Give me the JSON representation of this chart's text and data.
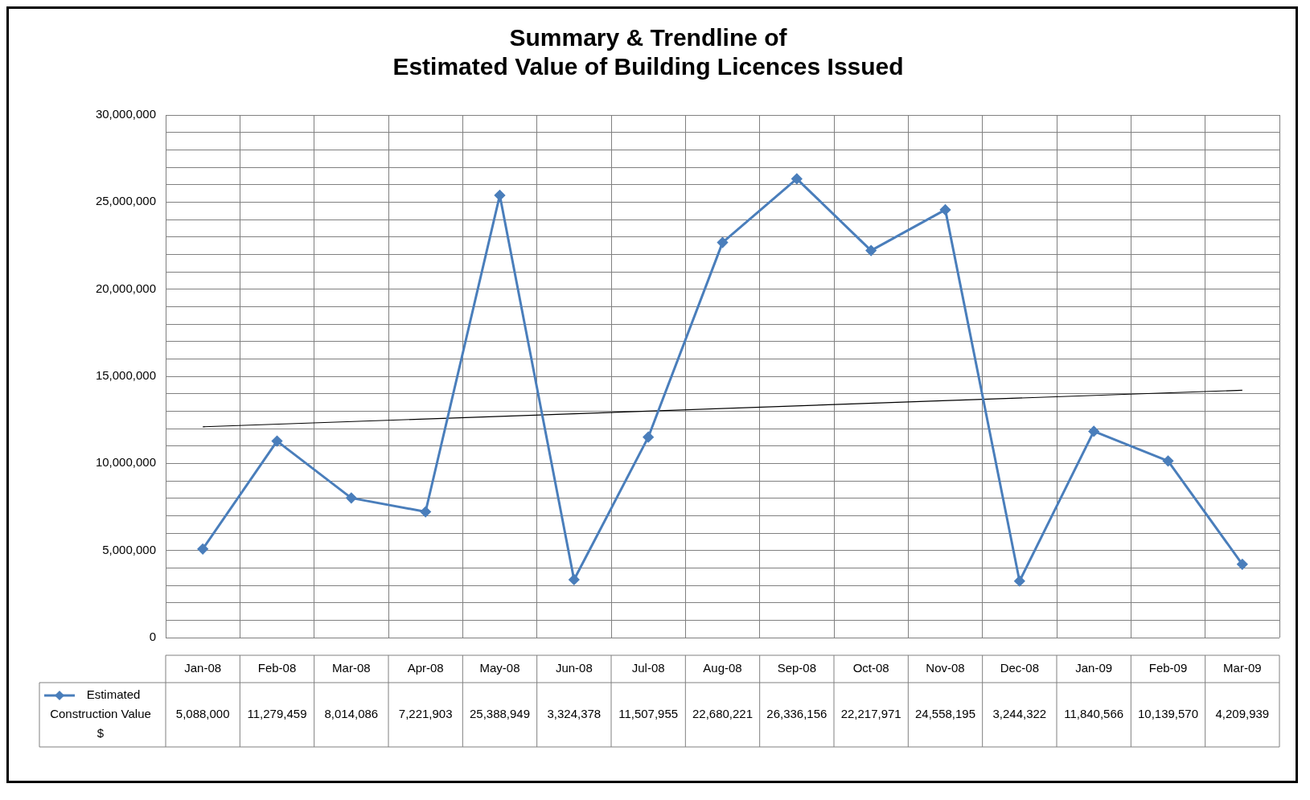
{
  "chart_data": {
    "type": "line",
    "title": "Summary & Trendline of\nEstimated Value of Building Licences Issued",
    "categories": [
      "Jan-08",
      "Feb-08",
      "Mar-08",
      "Apr-08",
      "May-08",
      "Jun-08",
      "Jul-08",
      "Aug-08",
      "Sep-08",
      "Oct-08",
      "Nov-08",
      "Dec-08",
      "Jan-09",
      "Feb-09",
      "Mar-09"
    ],
    "series": [
      {
        "name": "Estimated Construction Value $",
        "color": "#4a7ebb",
        "values": [
          5088000,
          11279459,
          8014086,
          7221903,
          25388949,
          3324378,
          11507955,
          22680221,
          26336156,
          22217971,
          24558195,
          3244322,
          11840566,
          10139570,
          4209939
        ],
        "value_labels": [
          "5,088,000",
          "11,279,459",
          "8,014,086",
          "7,221,903",
          "25,388,949",
          "3,324,378",
          "11,507,955",
          "22,680,221",
          "26,336,156",
          "22,217,971",
          "24,558,195",
          "3,244,322",
          "11,840,566",
          "10,139,570",
          "4,209,939"
        ]
      },
      {
        "type": "line",
        "color": "#000000",
        "x": [
          "Jan-08",
          "Mar-09"
        ],
        "values": [
          12100000,
          14200000
        ],
        "marker": "none"
      }
    ],
    "ylim": [
      0,
      30000000
    ],
    "yticks": [
      0,
      {
        "value": 1000000,
        "label": null
      },
      {
        "value": 2000000,
        "label": null
      },
      {
        "value": 3000000,
        "label": null
      },
      {
        "value": 4000000,
        "label": null
      },
      {
        "value": 5000000,
        "label": "5,000,000"
      },
      {
        "value": 6000000,
        "label": null
      },
      {
        "value": 7000000,
        "label": null
      },
      {
        "value": 8000000,
        "label": null
      },
      {
        "value": 9000000,
        "label": null
      },
      {
        "value": 10000000,
        "label": "10,000,000"
      },
      {
        "value": 11000000,
        "label": null
      },
      {
        "value": 12000000,
        "label": null
      },
      {
        "value": 13000000,
        "label": null
      },
      {
        "value": 14000000,
        "label": null
      },
      {
        "value": 15000000,
        "label": "15,000,000"
      },
      {
        "value": 16000000,
        "label": null
      },
      {
        "value": 17000000,
        "label": null
      },
      {
        "value": 18000000,
        "label": null
      },
      {
        "value": 19000000,
        "label": null
      },
      {
        "value": 20000000,
        "label": "20,000,000"
      },
      {
        "value": 21000000,
        "label": null
      },
      {
        "value": 22000000,
        "label": null
      },
      {
        "value": 23000000,
        "label": null
      },
      {
        "value": 24000000,
        "label": null
      },
      {
        "value": 25000000,
        "label": "25,000,000"
      },
      {
        "value": 26000000,
        "label": null
      },
      {
        "value": 27000000,
        "label": null
      },
      {
        "value": 28000000,
        "label": null
      },
      {
        "value": 29000000,
        "label": null
      },
      {
        "value": 30000000,
        "label": "30,000,000"
      }
    ],
    "grid": true,
    "marker": "diamond",
    "line_style": "solid",
    "legend": "bottom left"
  }
}
